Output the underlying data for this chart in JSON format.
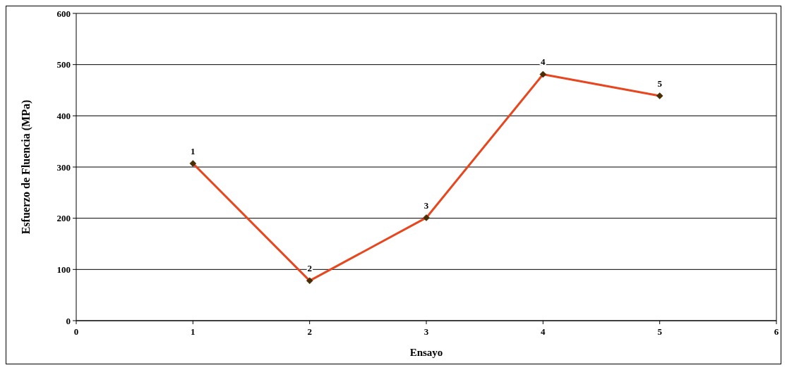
{
  "chart_data": {
    "type": "line",
    "xlabel": "Ensayo",
    "ylabel": "Esfuerzo de Fluencia (MPa)",
    "x": [
      1,
      2,
      3,
      4,
      5
    ],
    "series": [
      {
        "color": "#e8461e",
        "values": [
          307,
          78,
          201,
          481,
          439
        ]
      }
    ],
    "annotations": [
      {
        "text": "1",
        "x": 1,
        "y": 307
      },
      {
        "text": "2",
        "x": 2,
        "y": 78
      },
      {
        "text": "3",
        "x": 3,
        "y": 201
      },
      {
        "text": "4",
        "x": 4,
        "y": 481
      },
      {
        "text": "5",
        "x": 5,
        "y": 439
      }
    ],
    "xlim": [
      0,
      6
    ],
    "xticks": [
      0,
      1,
      2,
      3,
      4,
      5,
      6
    ],
    "ylim": [
      0,
      600
    ],
    "yticks": [
      0,
      100,
      200,
      300,
      400,
      500,
      600
    ],
    "grid": "y",
    "marker": "diamond",
    "line_style": "solid"
  }
}
